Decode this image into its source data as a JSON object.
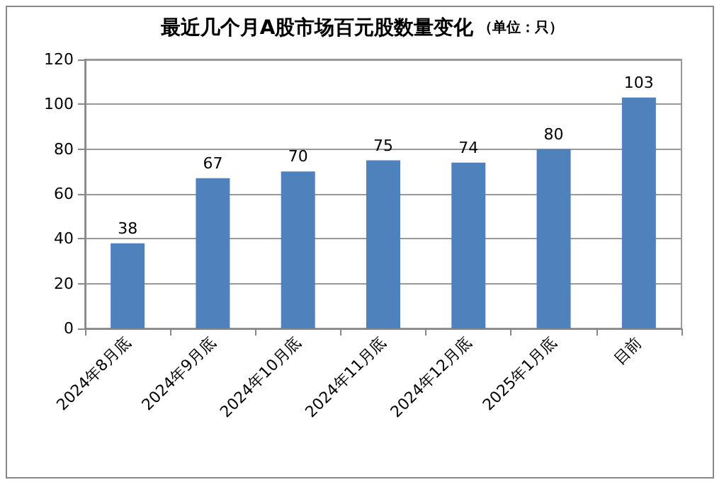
{
  "chart_data": {
    "type": "bar",
    "title": "最近几个月A股市场百元股数量变化",
    "subtitle": "（单位：只）",
    "categories": [
      "2024年8月底",
      "2024年9月底",
      "2024年10月底",
      "2024年11月底",
      "2024年12月底",
      "2025年1月底",
      "目前"
    ],
    "values": [
      38,
      67,
      70,
      75,
      74,
      80,
      103
    ],
    "color": "#4f81bd",
    "ylim": [
      0,
      120
    ],
    "yticks": [
      0,
      20,
      40,
      60,
      80,
      100,
      120
    ],
    "grid": "y",
    "data_labels": true
  }
}
